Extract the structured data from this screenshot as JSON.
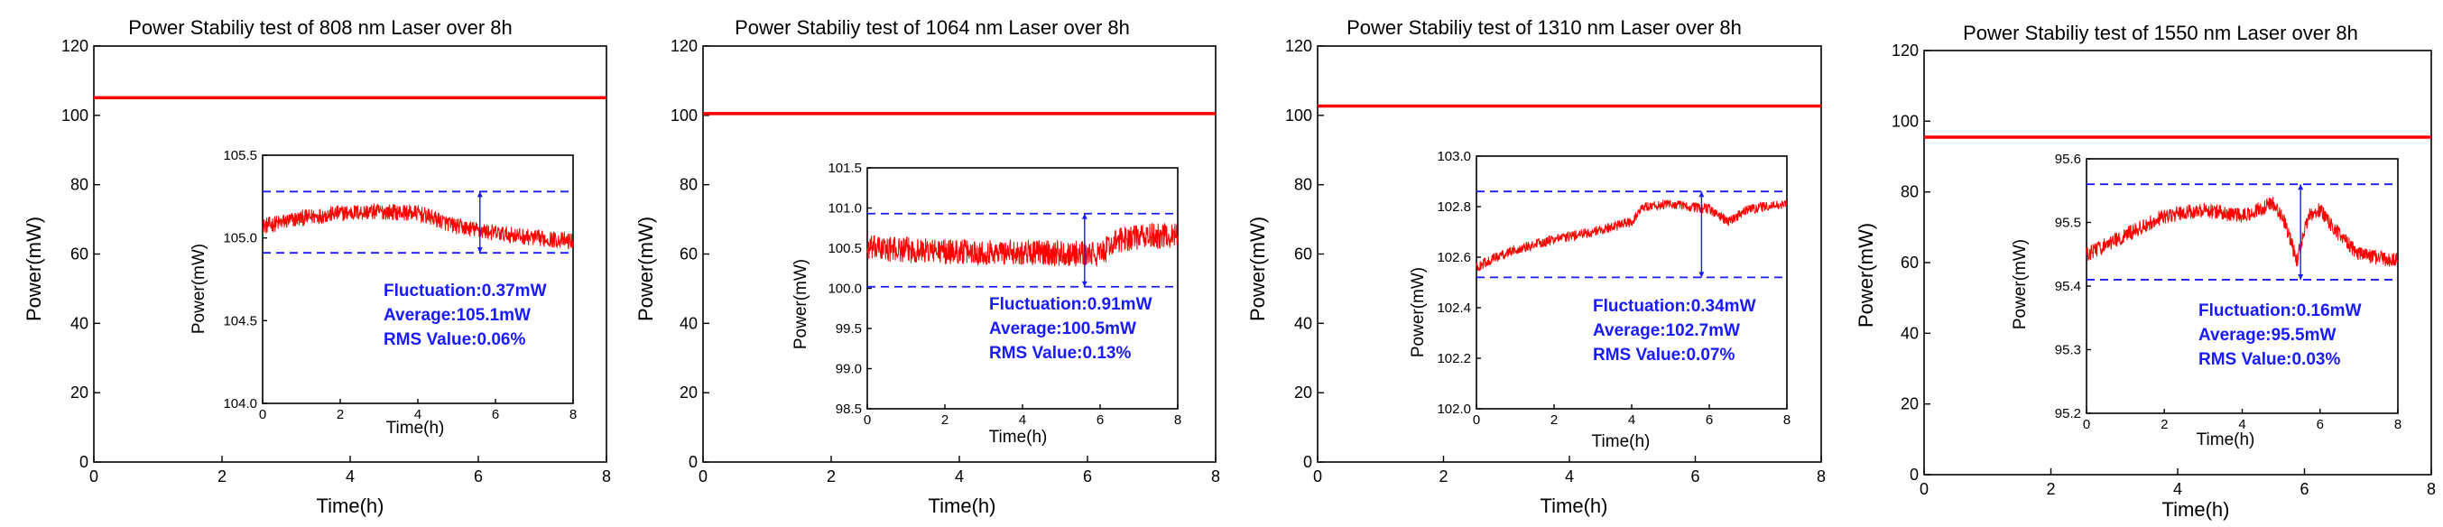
{
  "chart_data": [
    {
      "type": "line",
      "title": "Power Stabiliy test of 808 nm Laser over 8h",
      "xlabel": "Time(h)",
      "ylabel": "Power(mW)",
      "xlim": [
        0,
        8
      ],
      "ylim": [
        0,
        120
      ],
      "xticks": [
        "0",
        "2",
        "4",
        "6",
        "8"
      ],
      "yticks": [
        "0",
        "20",
        "40",
        "60",
        "80",
        "100",
        "120"
      ],
      "series": [
        {
          "color": "#ff0000",
          "x": [
            0,
            8
          ],
          "y": [
            105.1,
            105.1
          ]
        }
      ],
      "inset": {
        "xlabel": "Time(h)",
        "ylabel": "Power(mW)",
        "xlim": [
          0,
          8
        ],
        "ylim": [
          104.0,
          105.5
        ],
        "xticks": [
          "0",
          "2",
          "4",
          "6",
          "8"
        ],
        "yticks": [
          "104.0",
          "104.5",
          "105.0",
          "105.5"
        ],
        "trace_x": [
          0,
          1,
          2,
          3,
          4,
          4.5,
          5,
          5.5,
          6,
          7,
          8
        ],
        "trace_y": [
          105.07,
          105.12,
          105.15,
          105.16,
          105.15,
          105.11,
          105.07,
          105.05,
          105.03,
          105.0,
          104.98
        ],
        "noise": 0.05,
        "band_upper": 105.28,
        "band_lower": 104.91,
        "marker_x": 5.6,
        "annotations": [
          "Fluctuation:0.37mW",
          "Average:105.1mW",
          "RMS Value:0.06%"
        ]
      }
    },
    {
      "type": "line",
      "title": "Power Stabiliy test of 1064 nm Laser over 8h",
      "xlabel": "Time(h)",
      "ylabel": "Power(mW)",
      "xlim": [
        0,
        8
      ],
      "ylim": [
        0,
        120
      ],
      "xticks": [
        "0",
        "2",
        "4",
        "6",
        "8"
      ],
      "yticks": [
        "0",
        "20",
        "40",
        "60",
        "80",
        "100",
        "120"
      ],
      "series": [
        {
          "color": "#ff0000",
          "x": [
            0,
            8
          ],
          "y": [
            100.5,
            100.5
          ]
        }
      ],
      "inset": {
        "xlabel": "Time(h)",
        "ylabel": "Power(mW)",
        "xlim": [
          0,
          8
        ],
        "ylim": [
          98.5,
          101.5
        ],
        "xticks": [
          "0",
          "2",
          "4",
          "6",
          "8"
        ],
        "yticks": [
          "98.5",
          "99.0",
          "99.5",
          "100.0",
          "100.5",
          "101.0",
          "101.5"
        ],
        "trace_x": [
          0,
          1,
          2,
          3,
          4,
          5,
          6,
          6.3,
          6.6,
          7,
          8
        ],
        "trace_y": [
          100.5,
          100.48,
          100.46,
          100.45,
          100.45,
          100.44,
          100.42,
          100.55,
          100.62,
          100.64,
          100.66
        ],
        "noise": 0.16,
        "band_upper": 100.93,
        "band_lower": 100.02,
        "marker_x": 5.6,
        "annotations": [
          "Fluctuation:0.91mW",
          "Average:100.5mW",
          "RMS Value:0.13%"
        ]
      }
    },
    {
      "type": "line",
      "title": "Power Stabiliy test of 1310 nm Laser over 8h",
      "xlabel": "Time(h)",
      "ylabel": "Power(mW)",
      "xlim": [
        0,
        8
      ],
      "ylim": [
        0,
        120
      ],
      "xticks": [
        "0",
        "2",
        "4",
        "6",
        "8"
      ],
      "yticks": [
        "0",
        "20",
        "40",
        "60",
        "80",
        "100",
        "120"
      ],
      "series": [
        {
          "color": "#ff0000",
          "x": [
            0,
            8
          ],
          "y": [
            102.7,
            102.7
          ]
        }
      ],
      "inset": {
        "xlabel": "Time(h)",
        "ylabel": "Power(mW)",
        "xlim": [
          0,
          8
        ],
        "ylim": [
          102.0,
          103.0
        ],
        "xticks": [
          "0",
          "2",
          "4",
          "6",
          "8"
        ],
        "yticks": [
          "102.0",
          "102.2",
          "102.4",
          "102.6",
          "102.8",
          "103.0"
        ],
        "trace_x": [
          0,
          0.5,
          1,
          2,
          3,
          4,
          4.3,
          5,
          6,
          6.5,
          7,
          8
        ],
        "trace_y": [
          102.56,
          102.6,
          102.63,
          102.67,
          102.7,
          102.74,
          102.8,
          102.81,
          102.79,
          102.74,
          102.79,
          102.81
        ],
        "noise": 0.02,
        "band_upper": 102.86,
        "band_lower": 102.52,
        "marker_x": 5.8,
        "annotations": [
          "Fluctuation:0.34mW",
          "Average:102.7mW",
          "RMS Value:0.07%"
        ]
      }
    },
    {
      "type": "line",
      "title": "Power Stabiliy test of 1550 nm Laser over 8h",
      "xlabel": "Time(h)",
      "ylabel": "Power(mW)",
      "xlim": [
        0,
        8
      ],
      "ylim": [
        0,
        120
      ],
      "xticks": [
        "0",
        "2",
        "4",
        "6",
        "8"
      ],
      "yticks": [
        "0",
        "20",
        "40",
        "60",
        "80",
        "100",
        "120"
      ],
      "series": [
        {
          "color": "#ff0000",
          "x": [
            0,
            8
          ],
          "y": [
            95.5,
            95.5
          ]
        }
      ],
      "inset": {
        "xlabel": "Time(h)",
        "ylabel": "Power(mW)",
        "xlim": [
          0,
          8
        ],
        "ylim": [
          95.2,
          95.6
        ],
        "xticks": [
          "0",
          "2",
          "4",
          "6",
          "8"
        ],
        "yticks": [
          "95.2",
          "95.3",
          "95.4",
          "95.5",
          "95.6"
        ],
        "trace_x": [
          0,
          1,
          2,
          3,
          4,
          4.8,
          5.1,
          5.4,
          5.7,
          6,
          6.5,
          7,
          8
        ],
        "trace_y": [
          95.45,
          95.48,
          95.51,
          95.52,
          95.51,
          95.53,
          95.5,
          95.44,
          95.51,
          95.52,
          95.48,
          95.45,
          95.44
        ],
        "noise": 0.012,
        "band_upper": 95.56,
        "band_lower": 95.41,
        "marker_x": 5.5,
        "annotations": [
          "Fluctuation:0.16mW",
          "Average:95.5mW",
          "RMS Value:0.03%"
        ]
      }
    }
  ]
}
